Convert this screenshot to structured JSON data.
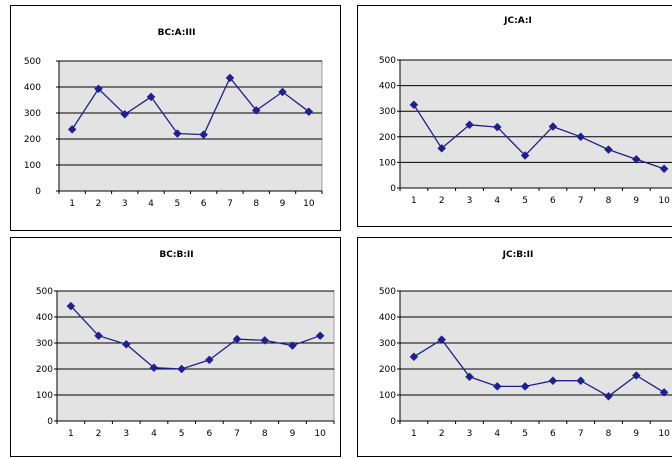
{
  "chart_data": [
    {
      "type": "line",
      "title": "BC:A:III",
      "categories": [
        "1",
        "2",
        "3",
        "4",
        "5",
        "6",
        "7",
        "8",
        "9",
        "10"
      ],
      "values": [
        237,
        393,
        295,
        362,
        221,
        217,
        435,
        310,
        381,
        305
      ],
      "ylim": [
        0,
        500
      ],
      "yticks": [
        0,
        100,
        200,
        300,
        400,
        500
      ],
      "grid": true,
      "line_color": "#1f1f8f",
      "plot_bg": "#e3e3e3"
    },
    {
      "type": "line",
      "title": "JC:A:I",
      "categories": [
        "1",
        "2",
        "3",
        "4",
        "5",
        "6",
        "7",
        "8",
        "9",
        "10"
      ],
      "values": [
        325,
        155,
        247,
        238,
        127,
        240,
        200,
        150,
        112,
        75
      ],
      "ylim": [
        0,
        500
      ],
      "yticks": [
        0,
        100,
        200,
        300,
        400,
        500
      ],
      "grid": true,
      "line_color": "#1f1f8f",
      "plot_bg": "#e3e3e3"
    },
    {
      "type": "line",
      "title": "BC:B:II",
      "categories": [
        "1",
        "2",
        "3",
        "4",
        "5",
        "6",
        "7",
        "8",
        "9",
        "10"
      ],
      "values": [
        442,
        328,
        295,
        205,
        200,
        235,
        315,
        310,
        290,
        328
      ],
      "ylim": [
        0,
        500
      ],
      "yticks": [
        0,
        100,
        200,
        300,
        400,
        500
      ],
      "grid": true,
      "line_color": "#1f1f8f",
      "plot_bg": "#e3e3e3"
    },
    {
      "type": "line",
      "title": "JC:B:II",
      "categories": [
        "1",
        "2",
        "3",
        "4",
        "5",
        "6",
        "7",
        "8",
        "9",
        "10"
      ],
      "values": [
        247,
        313,
        170,
        133,
        133,
        155,
        155,
        95,
        175,
        110
      ],
      "ylim": [
        0,
        500
      ],
      "yticks": [
        0,
        100,
        200,
        300,
        400,
        500
      ],
      "grid": true,
      "line_color": "#1f1f8f",
      "plot_bg": "#e3e3e3"
    }
  ]
}
